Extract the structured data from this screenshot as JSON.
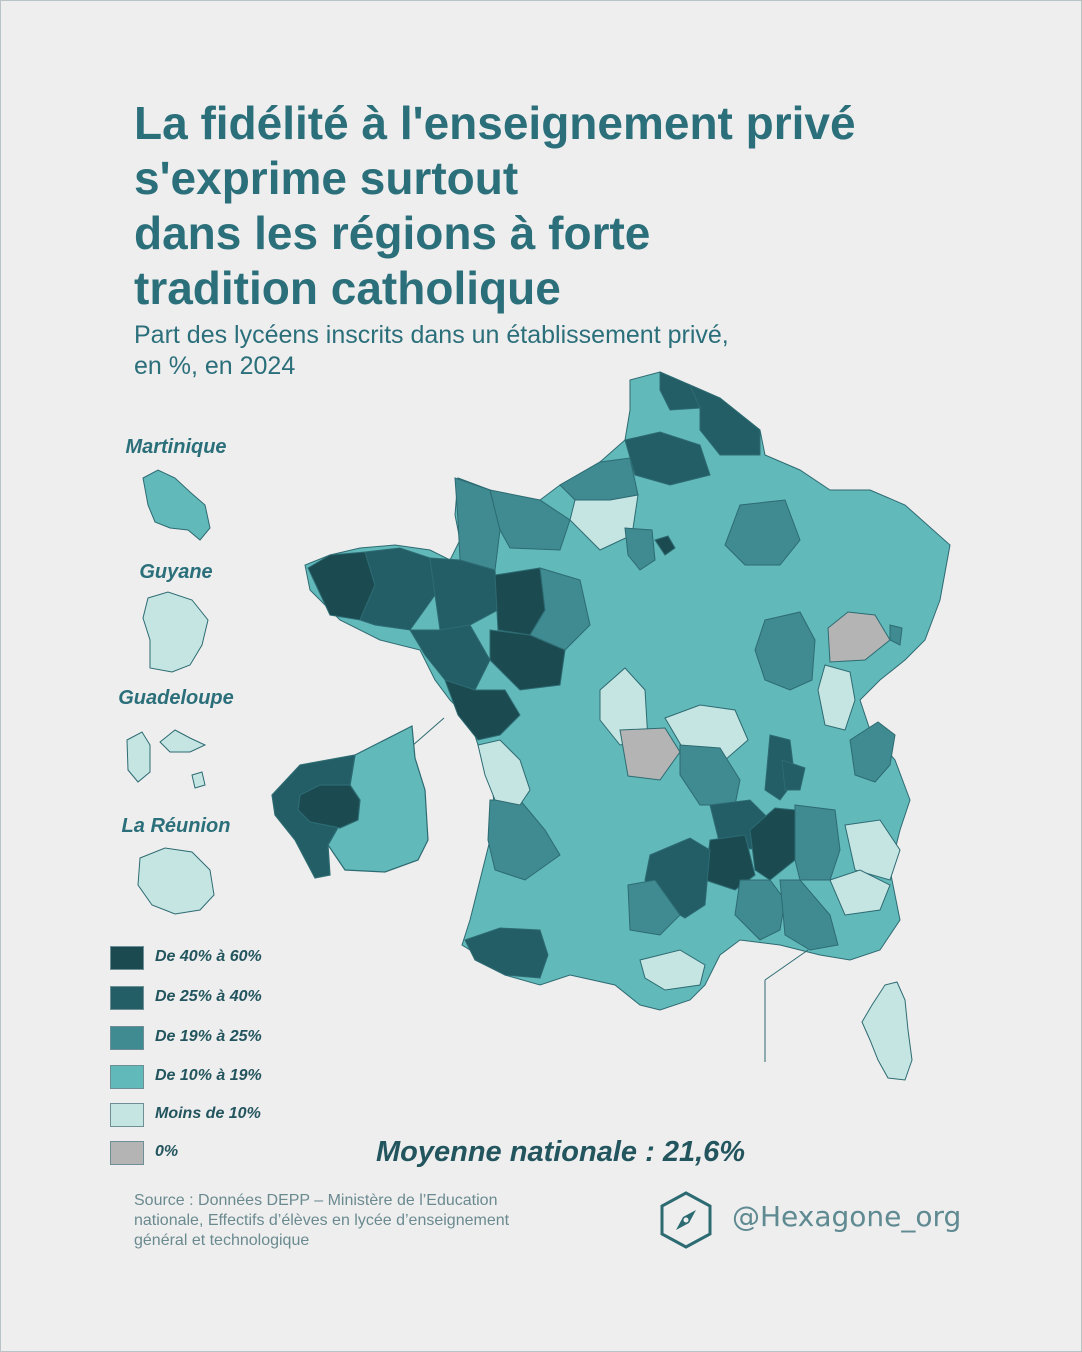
{
  "title_lines": [
    "La fidélité à l'enseignement privé",
    "s'exprime surtout",
    "dans les régions à forte",
    "tradition catholique"
  ],
  "subtitle_lines": [
    "Part des lycéens inscrits dans un établissement privé,",
    "en %, en 2024"
  ],
  "overseas_labels": {
    "martinique": "Martinique",
    "guyane": "Guyane",
    "guadeloupe": "Guadeloupe",
    "reunion": "La Réunion"
  },
  "legend": [
    {
      "label": "De 40% à 60%",
      "color": "#1c4a51"
    },
    {
      "label": "De 25% à  40%",
      "color": "#235e66"
    },
    {
      "label": "De 19% à 25%",
      "color": "#3f8b91"
    },
    {
      "label": "De 10% à 19%",
      "color": "#62b9ba"
    },
    {
      "label": "Moins de 10%",
      "color": "#c5e5e3"
    },
    {
      "label": "0%",
      "color": "#b4b4b4"
    }
  ],
  "national_average": "Moyenne nationale : 21,6%",
  "source_lines": [
    "Source : Données DEPP – Ministère de l’Education",
    "nationale, Effectifs d’élèves en lycée d’enseignement",
    "général et technologique"
  ],
  "brand": "@Hexagone_org",
  "colors": {
    "title": "#2b6f7b",
    "background": "#eeeeee",
    "border": "#2d6b72"
  }
}
